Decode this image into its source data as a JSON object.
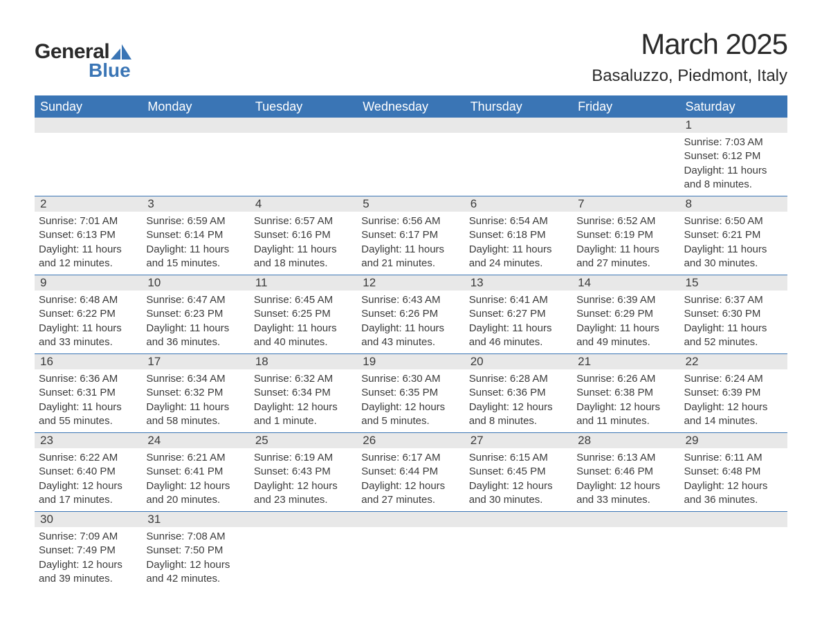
{
  "logo": {
    "text_general": "General",
    "text_blue": "Blue",
    "shape_color": "#3a75b5"
  },
  "header": {
    "month_title": "March 2025",
    "location": "Basaluzzo, Piedmont, Italy"
  },
  "colors": {
    "header_bg": "#3a75b5",
    "header_text": "#ffffff",
    "daynum_bg": "#e8e8e8",
    "row_border": "#3a75b5",
    "body_text": "#3a3a3a",
    "background": "#ffffff"
  },
  "typography": {
    "month_title_fontsize": 42,
    "location_fontsize": 24,
    "weekday_fontsize": 18,
    "daynum_fontsize": 17,
    "body_fontsize": 15,
    "font_family": "Arial"
  },
  "weekdays": [
    "Sunday",
    "Monday",
    "Tuesday",
    "Wednesday",
    "Thursday",
    "Friday",
    "Saturday"
  ],
  "weeks": [
    [
      {
        "day": "",
        "sunrise": "",
        "sunset": "",
        "daylight": ""
      },
      {
        "day": "",
        "sunrise": "",
        "sunset": "",
        "daylight": ""
      },
      {
        "day": "",
        "sunrise": "",
        "sunset": "",
        "daylight": ""
      },
      {
        "day": "",
        "sunrise": "",
        "sunset": "",
        "daylight": ""
      },
      {
        "day": "",
        "sunrise": "",
        "sunset": "",
        "daylight": ""
      },
      {
        "day": "",
        "sunrise": "",
        "sunset": "",
        "daylight": ""
      },
      {
        "day": "1",
        "sunrise": "Sunrise: 7:03 AM",
        "sunset": "Sunset: 6:12 PM",
        "daylight": "Daylight: 11 hours and 8 minutes."
      }
    ],
    [
      {
        "day": "2",
        "sunrise": "Sunrise: 7:01 AM",
        "sunset": "Sunset: 6:13 PM",
        "daylight": "Daylight: 11 hours and 12 minutes."
      },
      {
        "day": "3",
        "sunrise": "Sunrise: 6:59 AM",
        "sunset": "Sunset: 6:14 PM",
        "daylight": "Daylight: 11 hours and 15 minutes."
      },
      {
        "day": "4",
        "sunrise": "Sunrise: 6:57 AM",
        "sunset": "Sunset: 6:16 PM",
        "daylight": "Daylight: 11 hours and 18 minutes."
      },
      {
        "day": "5",
        "sunrise": "Sunrise: 6:56 AM",
        "sunset": "Sunset: 6:17 PM",
        "daylight": "Daylight: 11 hours and 21 minutes."
      },
      {
        "day": "6",
        "sunrise": "Sunrise: 6:54 AM",
        "sunset": "Sunset: 6:18 PM",
        "daylight": "Daylight: 11 hours and 24 minutes."
      },
      {
        "day": "7",
        "sunrise": "Sunrise: 6:52 AM",
        "sunset": "Sunset: 6:19 PM",
        "daylight": "Daylight: 11 hours and 27 minutes."
      },
      {
        "day": "8",
        "sunrise": "Sunrise: 6:50 AM",
        "sunset": "Sunset: 6:21 PM",
        "daylight": "Daylight: 11 hours and 30 minutes."
      }
    ],
    [
      {
        "day": "9",
        "sunrise": "Sunrise: 6:48 AM",
        "sunset": "Sunset: 6:22 PM",
        "daylight": "Daylight: 11 hours and 33 minutes."
      },
      {
        "day": "10",
        "sunrise": "Sunrise: 6:47 AM",
        "sunset": "Sunset: 6:23 PM",
        "daylight": "Daylight: 11 hours and 36 minutes."
      },
      {
        "day": "11",
        "sunrise": "Sunrise: 6:45 AM",
        "sunset": "Sunset: 6:25 PM",
        "daylight": "Daylight: 11 hours and 40 minutes."
      },
      {
        "day": "12",
        "sunrise": "Sunrise: 6:43 AM",
        "sunset": "Sunset: 6:26 PM",
        "daylight": "Daylight: 11 hours and 43 minutes."
      },
      {
        "day": "13",
        "sunrise": "Sunrise: 6:41 AM",
        "sunset": "Sunset: 6:27 PM",
        "daylight": "Daylight: 11 hours and 46 minutes."
      },
      {
        "day": "14",
        "sunrise": "Sunrise: 6:39 AM",
        "sunset": "Sunset: 6:29 PM",
        "daylight": "Daylight: 11 hours and 49 minutes."
      },
      {
        "day": "15",
        "sunrise": "Sunrise: 6:37 AM",
        "sunset": "Sunset: 6:30 PM",
        "daylight": "Daylight: 11 hours and 52 minutes."
      }
    ],
    [
      {
        "day": "16",
        "sunrise": "Sunrise: 6:36 AM",
        "sunset": "Sunset: 6:31 PM",
        "daylight": "Daylight: 11 hours and 55 minutes."
      },
      {
        "day": "17",
        "sunrise": "Sunrise: 6:34 AM",
        "sunset": "Sunset: 6:32 PM",
        "daylight": "Daylight: 11 hours and 58 minutes."
      },
      {
        "day": "18",
        "sunrise": "Sunrise: 6:32 AM",
        "sunset": "Sunset: 6:34 PM",
        "daylight": "Daylight: 12 hours and 1 minute."
      },
      {
        "day": "19",
        "sunrise": "Sunrise: 6:30 AM",
        "sunset": "Sunset: 6:35 PM",
        "daylight": "Daylight: 12 hours and 5 minutes."
      },
      {
        "day": "20",
        "sunrise": "Sunrise: 6:28 AM",
        "sunset": "Sunset: 6:36 PM",
        "daylight": "Daylight: 12 hours and 8 minutes."
      },
      {
        "day": "21",
        "sunrise": "Sunrise: 6:26 AM",
        "sunset": "Sunset: 6:38 PM",
        "daylight": "Daylight: 12 hours and 11 minutes."
      },
      {
        "day": "22",
        "sunrise": "Sunrise: 6:24 AM",
        "sunset": "Sunset: 6:39 PM",
        "daylight": "Daylight: 12 hours and 14 minutes."
      }
    ],
    [
      {
        "day": "23",
        "sunrise": "Sunrise: 6:22 AM",
        "sunset": "Sunset: 6:40 PM",
        "daylight": "Daylight: 12 hours and 17 minutes."
      },
      {
        "day": "24",
        "sunrise": "Sunrise: 6:21 AM",
        "sunset": "Sunset: 6:41 PM",
        "daylight": "Daylight: 12 hours and 20 minutes."
      },
      {
        "day": "25",
        "sunrise": "Sunrise: 6:19 AM",
        "sunset": "Sunset: 6:43 PM",
        "daylight": "Daylight: 12 hours and 23 minutes."
      },
      {
        "day": "26",
        "sunrise": "Sunrise: 6:17 AM",
        "sunset": "Sunset: 6:44 PM",
        "daylight": "Daylight: 12 hours and 27 minutes."
      },
      {
        "day": "27",
        "sunrise": "Sunrise: 6:15 AM",
        "sunset": "Sunset: 6:45 PM",
        "daylight": "Daylight: 12 hours and 30 minutes."
      },
      {
        "day": "28",
        "sunrise": "Sunrise: 6:13 AM",
        "sunset": "Sunset: 6:46 PM",
        "daylight": "Daylight: 12 hours and 33 minutes."
      },
      {
        "day": "29",
        "sunrise": "Sunrise: 6:11 AM",
        "sunset": "Sunset: 6:48 PM",
        "daylight": "Daylight: 12 hours and 36 minutes."
      }
    ],
    [
      {
        "day": "30",
        "sunrise": "Sunrise: 7:09 AM",
        "sunset": "Sunset: 7:49 PM",
        "daylight": "Daylight: 12 hours and 39 minutes."
      },
      {
        "day": "31",
        "sunrise": "Sunrise: 7:08 AM",
        "sunset": "Sunset: 7:50 PM",
        "daylight": "Daylight: 12 hours and 42 minutes."
      },
      {
        "day": "",
        "sunrise": "",
        "sunset": "",
        "daylight": ""
      },
      {
        "day": "",
        "sunrise": "",
        "sunset": "",
        "daylight": ""
      },
      {
        "day": "",
        "sunrise": "",
        "sunset": "",
        "daylight": ""
      },
      {
        "day": "",
        "sunrise": "",
        "sunset": "",
        "daylight": ""
      },
      {
        "day": "",
        "sunrise": "",
        "sunset": "",
        "daylight": ""
      }
    ]
  ]
}
